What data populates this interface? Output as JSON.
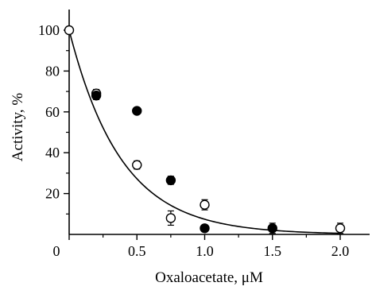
{
  "chart_data": {
    "type": "scatter",
    "title": "",
    "xlabel": "Oxaloacetate, μM",
    "ylabel": "Activity, %",
    "xlim": [
      0,
      2.2
    ],
    "ylim": [
      0,
      105
    ],
    "x_ticks": [
      0,
      0.5,
      1.0,
      1.5,
      2.0
    ],
    "x_tick_labels": [
      "0",
      "0.5",
      "1.0",
      "1.5",
      "2.0"
    ],
    "y_ticks": [
      20,
      40,
      60,
      80,
      100
    ],
    "y_tick_labels": [
      "20",
      "40",
      "60",
      "80",
      "100"
    ],
    "grid": false,
    "legend": "none",
    "series": [
      {
        "marker": "open-circle",
        "color": "#000000",
        "x": [
          0,
          0.2,
          0.5,
          0.75,
          1.0,
          2.0
        ],
        "y": [
          100,
          69,
          34,
          8,
          14.5,
          3
        ],
        "error": [
          0,
          2,
          2,
          3.5,
          2.5,
          2.5
        ]
      },
      {
        "marker": "filled-circle",
        "color": "#000000",
        "x": [
          0.2,
          0.5,
          0.75,
          1.0,
          1.5
        ],
        "y": [
          68,
          60.5,
          26.5,
          3,
          3
        ],
        "error": [
          2,
          0,
          2,
          0,
          2.5
        ]
      }
    ],
    "fit_curve": {
      "type": "exponential-decay",
      "y0": 100,
      "k": 2.6,
      "x_range": [
        0,
        2.0
      ],
      "color": "#000000"
    }
  }
}
